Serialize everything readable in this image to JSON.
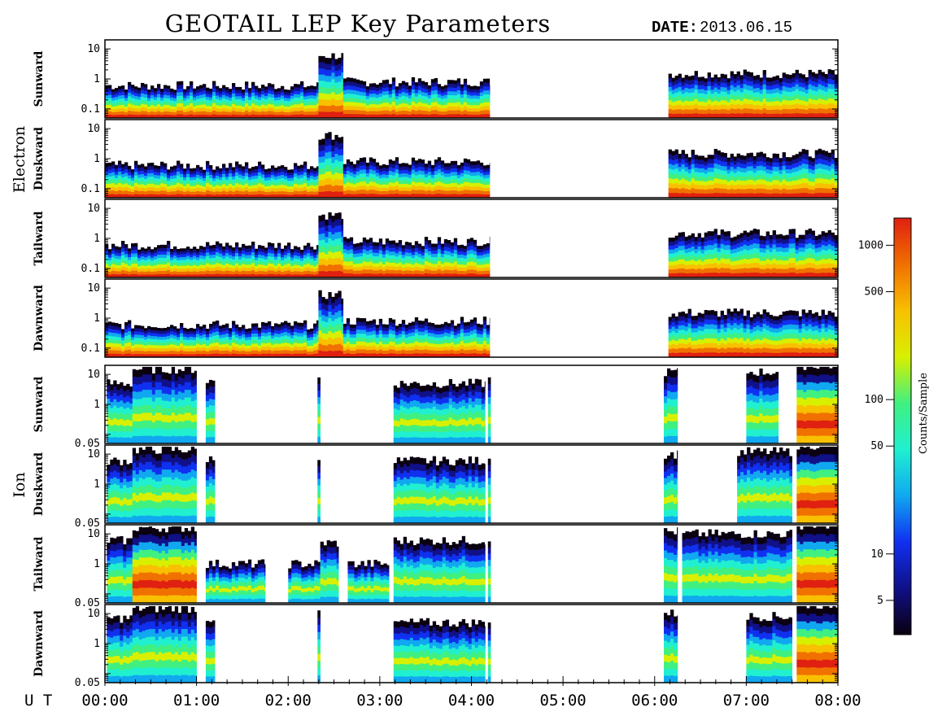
{
  "title": "GEOTAIL LEP Key Parameters",
  "date_label": "DATE:",
  "date_value": "2013.06.15",
  "x_axis_label": "U T",
  "chart_data": {
    "type": "heatmap",
    "title": "GEOTAIL LEP Key Parameters",
    "date": "2013.06.15",
    "xlabel": "U T",
    "x_ticks": [
      "00:00",
      "01:00",
      "02:00",
      "03:00",
      "04:00",
      "05:00",
      "06:00",
      "07:00",
      "08:00"
    ],
    "xlim_hours": [
      0,
      8
    ],
    "colorbar": {
      "label": "Counts/Sample",
      "scale": "log",
      "range": [
        3,
        1500
      ],
      "ticks": [
        1000,
        500,
        100,
        50,
        10,
        5
      ],
      "colormap": [
        "#0a0010",
        "#101088",
        "#1030f0",
        "#10a8f0",
        "#20f0d0",
        "#40f080",
        "#d8f000",
        "#f8c000",
        "#f07000",
        "#e02010"
      ]
    },
    "groups": [
      {
        "species": "Electron",
        "y_scale": "log",
        "y_ticks": [
          "10",
          "1",
          "0.1"
        ],
        "ylim": [
          0.05,
          20
        ],
        "panels": [
          {
            "direction": "Sunward",
            "level": 0.55
          },
          {
            "direction": "Duskward",
            "level": 0.55
          },
          {
            "direction": "Tailward",
            "level": 0.6
          },
          {
            "direction": "Dawnward",
            "level": 0.5
          }
        ],
        "segments_hours": [
          [
            0.0,
            2.33,
            0.6
          ],
          [
            2.33,
            2.6,
            6.0
          ],
          [
            2.6,
            4.2,
            0.8
          ],
          [
            6.15,
            8.0,
            1.5
          ]
        ]
      },
      {
        "species": "Ion",
        "y_scale": "log",
        "y_ticks": [
          "10",
          "1",
          "0.05"
        ],
        "ylim": [
          0.05,
          20
        ],
        "panels": [
          {
            "direction": "Sunward",
            "segments_hours": [
              [
                0.02,
                0.3,
                5
              ],
              [
                0.3,
                1.0,
                15
              ],
              [
                1.1,
                1.2,
                6
              ],
              [
                2.32,
                2.35,
                8
              ],
              [
                3.15,
                4.15,
                5
              ],
              [
                4.18,
                4.21,
                7
              ],
              [
                6.1,
                6.25,
                12
              ],
              [
                7.0,
                7.35,
                12
              ],
              [
                7.55,
                8.0,
                20
              ]
            ]
          },
          {
            "direction": "Duskward",
            "segments_hours": [
              [
                0.02,
                0.3,
                6
              ],
              [
                0.3,
                1.0,
                14
              ],
              [
                1.1,
                1.2,
                7
              ],
              [
                2.32,
                2.35,
                9
              ],
              [
                3.15,
                4.15,
                6
              ],
              [
                4.18,
                4.21,
                7
              ],
              [
                6.1,
                6.25,
                10
              ],
              [
                6.9,
                7.5,
                12
              ],
              [
                7.55,
                8.0,
                20
              ]
            ]
          },
          {
            "direction": "Tailward",
            "segments_hours": [
              [
                0.02,
                0.3,
                6
              ],
              [
                0.3,
                1.0,
                16
              ],
              [
                1.1,
                1.75,
                1.0
              ],
              [
                2.0,
                2.35,
                1.0
              ],
              [
                2.35,
                2.55,
                5
              ],
              [
                2.65,
                3.1,
                1.0
              ],
              [
                3.15,
                4.15,
                6
              ],
              [
                4.18,
                4.21,
                7
              ],
              [
                6.1,
                6.25,
                12
              ],
              [
                6.3,
                7.5,
                10
              ],
              [
                7.55,
                8.0,
                20
              ]
            ]
          },
          {
            "direction": "Dawnward",
            "segments_hours": [
              [
                0.02,
                0.3,
                7
              ],
              [
                0.3,
                1.0,
                15
              ],
              [
                1.1,
                1.2,
                7
              ],
              [
                2.32,
                2.35,
                9
              ],
              [
                3.15,
                4.15,
                5
              ],
              [
                4.18,
                4.21,
                6
              ],
              [
                6.1,
                6.25,
                10
              ],
              [
                7.0,
                7.5,
                8
              ],
              [
                7.55,
                8.0,
                20
              ]
            ]
          }
        ]
      }
    ]
  }
}
